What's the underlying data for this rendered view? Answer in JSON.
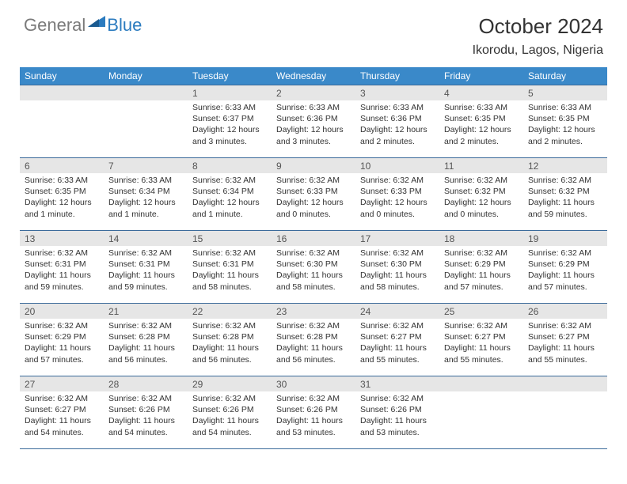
{
  "brand": {
    "general": "General",
    "blue": "Blue"
  },
  "title": "October 2024",
  "location": "Ikorodu, Lagos, Nigeria",
  "colors": {
    "header_bg": "#3a89c9",
    "header_text": "#ffffff",
    "daynum_bg": "#e6e6e6",
    "daynum_text": "#555555",
    "cell_text": "#333333",
    "rule": "#3a6a9a",
    "brand_gray": "#7a7a7a",
    "brand_blue": "#2b7bbf"
  },
  "day_headers": [
    "Sunday",
    "Monday",
    "Tuesday",
    "Wednesday",
    "Thursday",
    "Friday",
    "Saturday"
  ],
  "weeks": [
    [
      null,
      null,
      {
        "n": "1",
        "sr": "6:33 AM",
        "ss": "6:37 PM",
        "dl": "12 hours and 3 minutes."
      },
      {
        "n": "2",
        "sr": "6:33 AM",
        "ss": "6:36 PM",
        "dl": "12 hours and 3 minutes."
      },
      {
        "n": "3",
        "sr": "6:33 AM",
        "ss": "6:36 PM",
        "dl": "12 hours and 2 minutes."
      },
      {
        "n": "4",
        "sr": "6:33 AM",
        "ss": "6:35 PM",
        "dl": "12 hours and 2 minutes."
      },
      {
        "n": "5",
        "sr": "6:33 AM",
        "ss": "6:35 PM",
        "dl": "12 hours and 2 minutes."
      }
    ],
    [
      {
        "n": "6",
        "sr": "6:33 AM",
        "ss": "6:35 PM",
        "dl": "12 hours and 1 minute."
      },
      {
        "n": "7",
        "sr": "6:33 AM",
        "ss": "6:34 PM",
        "dl": "12 hours and 1 minute."
      },
      {
        "n": "8",
        "sr": "6:32 AM",
        "ss": "6:34 PM",
        "dl": "12 hours and 1 minute."
      },
      {
        "n": "9",
        "sr": "6:32 AM",
        "ss": "6:33 PM",
        "dl": "12 hours and 0 minutes."
      },
      {
        "n": "10",
        "sr": "6:32 AM",
        "ss": "6:33 PM",
        "dl": "12 hours and 0 minutes."
      },
      {
        "n": "11",
        "sr": "6:32 AM",
        "ss": "6:32 PM",
        "dl": "12 hours and 0 minutes."
      },
      {
        "n": "12",
        "sr": "6:32 AM",
        "ss": "6:32 PM",
        "dl": "11 hours and 59 minutes."
      }
    ],
    [
      {
        "n": "13",
        "sr": "6:32 AM",
        "ss": "6:31 PM",
        "dl": "11 hours and 59 minutes."
      },
      {
        "n": "14",
        "sr": "6:32 AM",
        "ss": "6:31 PM",
        "dl": "11 hours and 59 minutes."
      },
      {
        "n": "15",
        "sr": "6:32 AM",
        "ss": "6:31 PM",
        "dl": "11 hours and 58 minutes."
      },
      {
        "n": "16",
        "sr": "6:32 AM",
        "ss": "6:30 PM",
        "dl": "11 hours and 58 minutes."
      },
      {
        "n": "17",
        "sr": "6:32 AM",
        "ss": "6:30 PM",
        "dl": "11 hours and 58 minutes."
      },
      {
        "n": "18",
        "sr": "6:32 AM",
        "ss": "6:29 PM",
        "dl": "11 hours and 57 minutes."
      },
      {
        "n": "19",
        "sr": "6:32 AM",
        "ss": "6:29 PM",
        "dl": "11 hours and 57 minutes."
      }
    ],
    [
      {
        "n": "20",
        "sr": "6:32 AM",
        "ss": "6:29 PM",
        "dl": "11 hours and 57 minutes."
      },
      {
        "n": "21",
        "sr": "6:32 AM",
        "ss": "6:28 PM",
        "dl": "11 hours and 56 minutes."
      },
      {
        "n": "22",
        "sr": "6:32 AM",
        "ss": "6:28 PM",
        "dl": "11 hours and 56 minutes."
      },
      {
        "n": "23",
        "sr": "6:32 AM",
        "ss": "6:28 PM",
        "dl": "11 hours and 56 minutes."
      },
      {
        "n": "24",
        "sr": "6:32 AM",
        "ss": "6:27 PM",
        "dl": "11 hours and 55 minutes."
      },
      {
        "n": "25",
        "sr": "6:32 AM",
        "ss": "6:27 PM",
        "dl": "11 hours and 55 minutes."
      },
      {
        "n": "26",
        "sr": "6:32 AM",
        "ss": "6:27 PM",
        "dl": "11 hours and 55 minutes."
      }
    ],
    [
      {
        "n": "27",
        "sr": "6:32 AM",
        "ss": "6:27 PM",
        "dl": "11 hours and 54 minutes."
      },
      {
        "n": "28",
        "sr": "6:32 AM",
        "ss": "6:26 PM",
        "dl": "11 hours and 54 minutes."
      },
      {
        "n": "29",
        "sr": "6:32 AM",
        "ss": "6:26 PM",
        "dl": "11 hours and 54 minutes."
      },
      {
        "n": "30",
        "sr": "6:32 AM",
        "ss": "6:26 PM",
        "dl": "11 hours and 53 minutes."
      },
      {
        "n": "31",
        "sr": "6:32 AM",
        "ss": "6:26 PM",
        "dl": "11 hours and 53 minutes."
      },
      null,
      null
    ]
  ],
  "labels": {
    "sunrise": "Sunrise:",
    "sunset": "Sunset:",
    "daylight": "Daylight:"
  }
}
